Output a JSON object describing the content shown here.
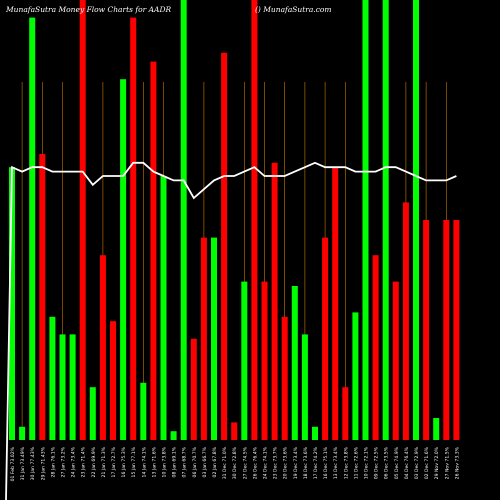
{
  "chart_data": {
    "type": "bar",
    "title_left": "MunafaSutra  Money  Flow  Charts for AADR",
    "title_right": "() MunafaSutra.com",
    "colors": {
      "up": "#00ff00",
      "down": "#ff0000",
      "line": "#ffffff",
      "grid": "#cc7a00",
      "background": "#000000"
    },
    "ylim": [
      0,
      100
    ],
    "grid": true,
    "categories": [
      "01 Feb 73.02%",
      "31 Jan 73.49%",
      "30 Jan 77.43%",
      "29 Jan 71.43%",
      "28 Jan 76.1%",
      "27 Jan 73.2%",
      "24 Jan 73.4%",
      "23 Jan 71.4%",
      "22 Jan 69.9%",
      "21 Jan 71.3%",
      "17 Jan 72.7%",
      "16 Jan 75.3%",
      "15 Jan 77.1%",
      "14 Jan 74.1%",
      "13 Jan 71.6%",
      "10 Jan 73.8%",
      "08 Jan 69.1%",
      "07 Jan 68.7%",
      "06 Jan 70.7%",
      "03 Jan 66.7%",
      "02 Jan 67.8%",
      "31 Dec 71.0%",
      "30 Dec 72.8%",
      "27 Dec 74.5%",
      "26 Dec 76.4%",
      "24 Dec 74.1%",
      "23 Dec 73.7%",
      "20 Dec 73.6%",
      "19 Dec 73.4%",
      "18 Dec 73.6%",
      "17 Dec 74.2%",
      "16 Dec 75.1%",
      "13 Dec 73.4%",
      "12 Dec 73.8%",
      "11 Dec 72.6%",
      "10 Dec 72.1%",
      "09 Dec 72.5%",
      "06 Dec 73.5%",
      "05 Dec 74.9%",
      "04 Dec 76.4%",
      "03 Dec 72.9%",
      "02 Dec 71.6%",
      "29 Nov 72.0%",
      "27 Nov 71.5%",
      "26 Nov 73.3%"
    ],
    "series": [
      {
        "values": [
          62,
          3,
          96,
          65,
          28,
          24,
          24,
          101,
          12,
          42,
          27,
          82,
          96,
          13,
          86,
          60,
          2,
          101,
          23,
          46,
          46,
          88,
          4,
          36,
          101,
          36,
          63,
          28,
          35,
          24,
          3,
          46,
          62,
          12,
          29,
          101,
          42,
          100,
          36,
          54,
          101,
          50,
          5,
          50,
          50
        ],
        "up": [
          true,
          true,
          true,
          false,
          true,
          true,
          true,
          false,
          true,
          false,
          false,
          true,
          false,
          true,
          false,
          true,
          true,
          true,
          false,
          false,
          true,
          false,
          false,
          true,
          false,
          false,
          false,
          false,
          true,
          true,
          true,
          false,
          false,
          false,
          true,
          true,
          false,
          true,
          false,
          false,
          true,
          false,
          true,
          false,
          false
        ]
      },
      {
        "values": [
          62,
          61,
          62,
          62,
          61,
          61,
          61,
          61,
          58,
          60,
          60,
          60,
          63,
          63,
          61,
          60,
          59,
          59,
          55,
          57,
          59,
          60,
          60,
          61,
          62,
          60,
          60,
          60,
          61,
          62,
          63,
          62,
          62,
          62,
          61,
          61,
          61,
          62,
          62,
          61,
          60,
          59,
          59,
          59,
          60
        ]
      }
    ]
  }
}
